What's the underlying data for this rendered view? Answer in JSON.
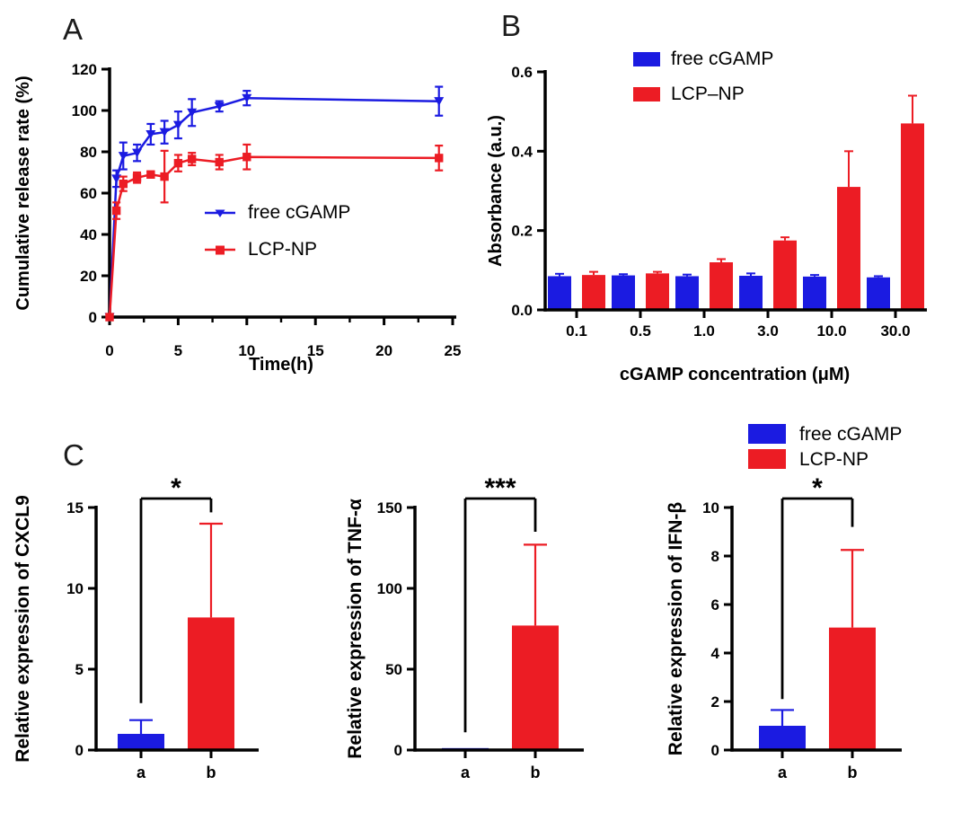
{
  "figure": {
    "background": "#ffffff",
    "colors": {
      "blue": "#1b1be1",
      "red": "#ec1c24",
      "axis": "#000000",
      "text": "#000000"
    },
    "panels": [
      {
        "id": "A",
        "label": "A"
      },
      {
        "id": "B",
        "label": "B"
      },
      {
        "id": "C",
        "label": "C"
      }
    ]
  },
  "panel_c_legend": {
    "items": [
      {
        "label": "free cGAMP",
        "color": "blue"
      },
      {
        "label": "LCP-NP",
        "color": "red"
      }
    ]
  },
  "chart_data": [
    {
      "id": "A",
      "type": "line",
      "title": "",
      "xlabel": "Time(h)",
      "ylabel": "Cumulative release rate (%)",
      "xlim": [
        0,
        25
      ],
      "ylim": [
        0,
        120
      ],
      "x_ticks": [
        0,
        5,
        10,
        15,
        20,
        25
      ],
      "x_tick_labels": [
        "0",
        "5",
        "10",
        "15",
        "20",
        "25"
      ],
      "x_minor_ticks": [
        2.5,
        7.5,
        12.5,
        17.5,
        22.5
      ],
      "y_ticks": [
        0,
        20,
        40,
        60,
        80,
        100,
        120
      ],
      "y_tick_labels": [
        "0",
        "20",
        "40",
        "60",
        "80",
        "100",
        "120"
      ],
      "grid": false,
      "legend_position": "inside-center",
      "series": [
        {
          "name": "free cGAMP",
          "color": "blue",
          "marker": "triangle-down",
          "x": [
            0,
            0.5,
            1,
            2,
            3,
            4,
            5,
            6,
            8,
            10,
            24
          ],
          "y": [
            0,
            67,
            78,
            79.5,
            88.5,
            89.5,
            93,
            99,
            102,
            106,
            104.5
          ],
          "err": [
            0,
            4,
            6.5,
            4,
            5,
            5.5,
            6.5,
            6.5,
            2.5,
            3.5,
            7
          ]
        },
        {
          "name": "LCP-NP",
          "color": "red",
          "marker": "square",
          "x": [
            0,
            0.5,
            1,
            2,
            3,
            4,
            5,
            6,
            8,
            10,
            24
          ],
          "y": [
            0,
            51.5,
            64.5,
            67.5,
            69,
            68,
            74.5,
            76.5,
            75,
            77.5,
            77
          ],
          "err": [
            0,
            4,
            3.5,
            2.5,
            1.5,
            12.5,
            4,
            3,
            3.5,
            6,
            6
          ]
        }
      ]
    },
    {
      "id": "B",
      "type": "bar",
      "title": "",
      "xlabel": "cGAMP concentration (μM)",
      "ylabel": "Absorbance (a.u.)",
      "ylim": [
        0,
        0.6
      ],
      "y_ticks": [
        0,
        0.2,
        0.4,
        0.6
      ],
      "y_tick_labels": [
        "0.0",
        "0.2",
        "0.4",
        "0.6"
      ],
      "grid": false,
      "legend_position": "top",
      "categories": [
        "0.1",
        "0.5",
        "1.0",
        "3.0",
        "10.0",
        "30.0"
      ],
      "series": [
        {
          "name": "free cGAMP",
          "color": "blue",
          "values": [
            0.085,
            0.087,
            0.085,
            0.086,
            0.084,
            0.082
          ],
          "err": [
            0.006,
            0.003,
            0.004,
            0.006,
            0.004,
            0.003
          ]
        },
        {
          "name": "LCP–NP",
          "color": "red",
          "values": [
            0.088,
            0.092,
            0.12,
            0.175,
            0.31,
            0.47
          ],
          "err": [
            0.008,
            0.004,
            0.008,
            0.008,
            0.09,
            0.07
          ]
        }
      ]
    },
    {
      "id": "C1",
      "type": "bar",
      "title": "",
      "xlabel": "",
      "ylabel": "Relative expression of CXCL9",
      "ylim": [
        0,
        15
      ],
      "y_ticks": [
        0,
        5,
        10,
        15
      ],
      "y_tick_labels": [
        "0",
        "5",
        "10",
        "15"
      ],
      "grid": false,
      "categories": [
        "a",
        "b"
      ],
      "bars": [
        {
          "category": "a",
          "value": 1.0,
          "err": 0.85,
          "color": "blue"
        },
        {
          "category": "b",
          "value": 8.2,
          "err": 5.8,
          "color": "red"
        }
      ],
      "significance": {
        "label": "*",
        "left": "a",
        "right": "b",
        "left_leg_end_y": 2.9,
        "right_leg_end_y": 14.7
      }
    },
    {
      "id": "C2",
      "type": "bar",
      "title": "",
      "xlabel": "",
      "ylabel": "Relative expression of TNF-α",
      "ylim": [
        0,
        150
      ],
      "y_ticks": [
        0,
        50,
        100,
        150
      ],
      "y_tick_labels": [
        "0",
        "50",
        "100",
        "150"
      ],
      "grid": false,
      "categories": [
        "a",
        "b"
      ],
      "bars": [
        {
          "category": "a",
          "value": 1.2,
          "err": 0,
          "color": "blue"
        },
        {
          "category": "b",
          "value": 77,
          "err": 50,
          "color": "red"
        }
      ],
      "significance": {
        "label": "***",
        "left": "a",
        "right": "b",
        "left_leg_end_y": 11,
        "right_leg_end_y": 135
      }
    },
    {
      "id": "C3",
      "type": "bar",
      "title": "",
      "xlabel": "",
      "ylabel": "Relative expression of IFN-β",
      "ylim": [
        0,
        10
      ],
      "y_ticks": [
        0,
        2,
        4,
        6,
        8,
        10
      ],
      "y_tick_labels": [
        "0",
        "2",
        "4",
        "6",
        "8",
        "10"
      ],
      "grid": false,
      "categories": [
        "a",
        "b"
      ],
      "bars": [
        {
          "category": "a",
          "value": 1.0,
          "err": 0.65,
          "color": "blue"
        },
        {
          "category": "b",
          "value": 5.05,
          "err": 3.2,
          "color": "red"
        }
      ],
      "significance": {
        "label": "*",
        "left": "a",
        "right": "b",
        "left_leg_end_y": 2.1,
        "right_leg_end_y": 9.2
      }
    }
  ]
}
